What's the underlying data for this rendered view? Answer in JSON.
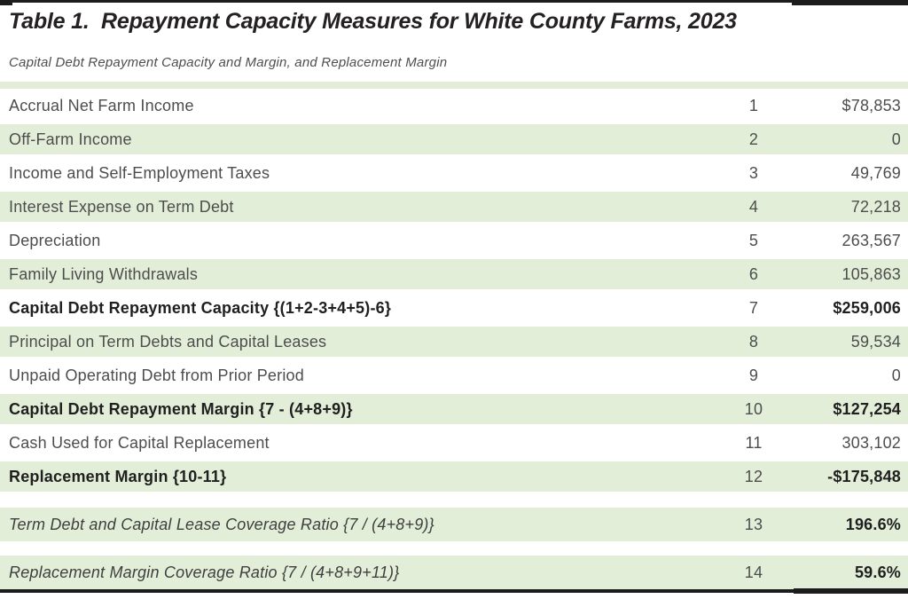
{
  "table": {
    "title": "Table 1.  Repayment Capacity Measures for White County Farms, 2023",
    "subtitle": "Capital Debt Repayment Capacity and Margin, and Replacement Margin",
    "rows": [
      {
        "label": "Accrual Net Farm Income",
        "line": "1",
        "value": "$78,853",
        "style": "normal",
        "shade": false,
        "gap_before": false
      },
      {
        "label": "Off-Farm Income",
        "line": "2",
        "value": "0",
        "style": "normal",
        "shade": true,
        "gap_before": false
      },
      {
        "label": "Income and Self-Employment Taxes",
        "line": "3",
        "value": "49,769",
        "style": "normal",
        "shade": false,
        "gap_before": false
      },
      {
        "label": "Interest Expense on Term Debt",
        "line": "4",
        "value": "72,218",
        "style": "normal",
        "shade": true,
        "gap_before": false
      },
      {
        "label": "Depreciation",
        "line": "5",
        "value": "263,567",
        "style": "normal",
        "shade": false,
        "gap_before": false
      },
      {
        "label": "Family Living Withdrawals",
        "line": "6",
        "value": "105,863",
        "style": "normal",
        "shade": true,
        "gap_before": false
      },
      {
        "label": "Capital Debt Repayment Capacity {(1+2-3+4+5)-6}",
        "line": "7",
        "value": "$259,006",
        "style": "bold",
        "shade": false,
        "gap_before": false
      },
      {
        "label": "Principal on Term Debts and Capital Leases",
        "line": "8",
        "value": "59,534",
        "style": "normal",
        "shade": true,
        "gap_before": false
      },
      {
        "label": "Unpaid Operating Debt from Prior Period",
        "line": "9",
        "value": "0",
        "style": "normal",
        "shade": false,
        "gap_before": false
      },
      {
        "label": "Capital Debt Repayment Margin {7 - (4+8+9)}",
        "line": "10",
        "value": "$127,254",
        "style": "bold",
        "shade": true,
        "gap_before": false
      },
      {
        "label": "Cash Used for Capital Replacement",
        "line": "11",
        "value": "303,102",
        "style": "normal",
        "shade": false,
        "gap_before": false
      },
      {
        "label": "Replacement Margin {10-11}",
        "line": "12",
        "value": "-$175,848",
        "style": "bold",
        "shade": true,
        "gap_before": false
      },
      {
        "label": "Term Debt and Capital Lease Coverage Ratio {7 / (4+8+9)}",
        "line": "13",
        "value": "196.6%",
        "style": "ratio",
        "shade": true,
        "gap_before": true
      },
      {
        "label": "Replacement Margin Coverage Ratio {7 / (4+8+9+11)}",
        "line": "14",
        "value": "59.6%",
        "style": "ratio",
        "shade": true,
        "gap_before": true
      }
    ],
    "colors": {
      "row_shade": "#e3eed9",
      "rule": "#1c1c1c",
      "text": "#4d4d4d",
      "text_bold": "#1f1f1f"
    }
  }
}
